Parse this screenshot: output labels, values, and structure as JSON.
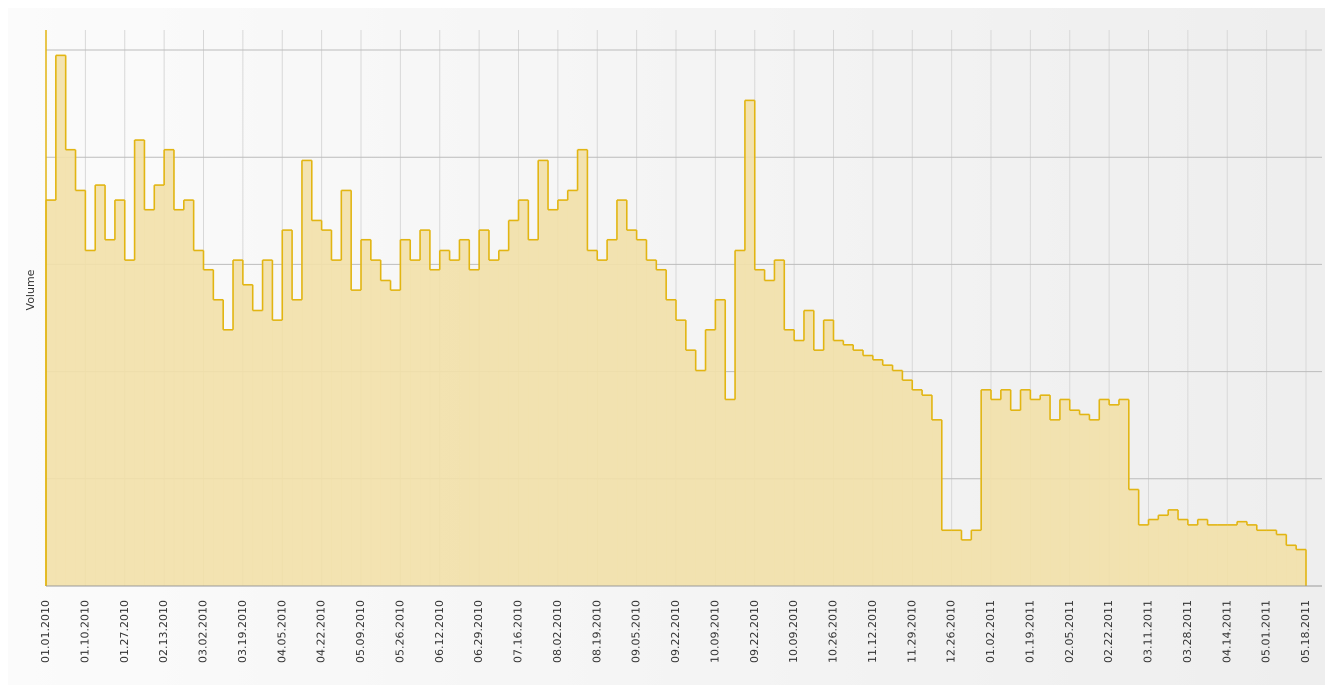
{
  "chart_data": {
    "type": "step-area",
    "y_label": "Volume",
    "color": "#e2b512",
    "fill": "#f2e0a8",
    "grid": true,
    "xlim": [
      0,
      128
    ],
    "xticks": [
      {
        "value": 0,
        "label": "01.01.2010"
      },
      {
        "value": 4,
        "label": "01.10.2010"
      },
      {
        "value": 8,
        "label": "01.27.2010"
      },
      {
        "value": 12,
        "label": "02.13.2010"
      },
      {
        "value": 16,
        "label": "03.02.2010"
      },
      {
        "value": 20,
        "label": "03.19.2010"
      },
      {
        "value": 24,
        "label": "04.05.2010"
      },
      {
        "value": 28,
        "label": "04.22.2010"
      },
      {
        "value": 32,
        "label": "05.09.2010"
      },
      {
        "value": 36,
        "label": "05.26.2010"
      },
      {
        "value": 40,
        "label": "06.12.2010"
      },
      {
        "value": 44,
        "label": "06.29.2010"
      },
      {
        "value": 48,
        "label": "07.16.2010"
      },
      {
        "value": 52,
        "label": "08.02.2010"
      },
      {
        "value": 56,
        "label": "08.19.2010"
      },
      {
        "value": 60,
        "label": "09.05.2010"
      },
      {
        "value": 64,
        "label": "09.22.2010"
      },
      {
        "value": 68,
        "label": "10.09.2010"
      },
      {
        "value": 72,
        "label": "09.22.2010"
      },
      {
        "value": 76,
        "label": "10.09.2010"
      },
      {
        "value": 80,
        "label": "10.26.2010"
      },
      {
        "value": 84,
        "label": "11.12.2010"
      },
      {
        "value": 88,
        "label": "11.29.2010"
      },
      {
        "value": 92,
        "label": "12.26.2010"
      },
      {
        "value": 96,
        "label": "01.02.2011"
      },
      {
        "value": 100,
        "label": "01.19.2011"
      },
      {
        "value": 104,
        "label": "02.05.2011"
      },
      {
        "value": 108,
        "label": "02.22.2011"
      },
      {
        "value": 112,
        "label": "03.11.2011"
      },
      {
        "value": 116,
        "label": "03.28.2011"
      },
      {
        "value": 120,
        "label": "04.14.2011"
      },
      {
        "value": 124,
        "label": "05.01.2011"
      },
      {
        "value": 128,
        "label": "05.18.2011"
      }
    ],
    "ylim": [
      0,
      5
    ],
    "yticks": [
      1,
      2,
      3,
      4,
      5
    ],
    "values": [
      3.6,
      4.95,
      4.07,
      3.69,
      3.13,
      3.74,
      3.23,
      3.6,
      3.04,
      4.16,
      3.51,
      3.74,
      4.07,
      3.51,
      3.6,
      3.13,
      2.95,
      2.67,
      2.39,
      3.04,
      2.81,
      2.57,
      3.04,
      2.48,
      3.32,
      2.67,
      3.97,
      3.41,
      3.32,
      3.04,
      3.69,
      2.76,
      3.23,
      3.04,
      2.85,
      2.76,
      3.23,
      3.04,
      3.32,
      2.95,
      3.13,
      3.04,
      3.23,
      2.95,
      3.32,
      3.04,
      3.13,
      3.41,
      3.6,
      3.23,
      3.97,
      3.51,
      3.6,
      3.69,
      4.07,
      3.13,
      3.04,
      3.23,
      3.6,
      3.32,
      3.23,
      3.04,
      2.95,
      2.67,
      2.48,
      2.2,
      2.01,
      2.39,
      2.67,
      1.74,
      3.13,
      4.53,
      2.95,
      2.85,
      3.04,
      2.39,
      2.29,
      2.57,
      2.2,
      2.48,
      2.29,
      2.25,
      2.2,
      2.15,
      2.11,
      2.06,
      2.01,
      1.92,
      1.83,
      1.78,
      1.55,
      0.52,
      0.52,
      0.43,
      0.52,
      1.83,
      1.74,
      1.83,
      1.64,
      1.83,
      1.74,
      1.78,
      1.55,
      1.74,
      1.64,
      1.6,
      1.55,
      1.74,
      1.69,
      1.74,
      0.9,
      0.57,
      0.62,
      0.66,
      0.71,
      0.62,
      0.57,
      0.62,
      0.57,
      0.57,
      0.57,
      0.6,
      0.57,
      0.52,
      0.52,
      0.48,
      0.38,
      0.34
    ]
  }
}
